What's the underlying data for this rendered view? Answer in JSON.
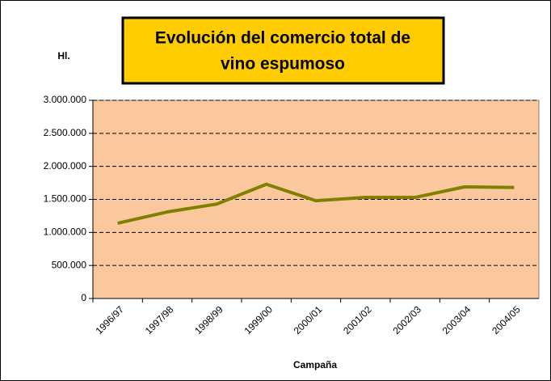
{
  "chart_data": {
    "type": "line",
    "title": [
      "Evolución del comercio total de",
      "vino espumoso"
    ],
    "y_label": "Hl.",
    "x_label": "Campaña",
    "categories": [
      "1996/97",
      "1997/98",
      "1998/99",
      "1999/00",
      "2000/01",
      "2001/02",
      "2002/03",
      "2003/04",
      "2004/05"
    ],
    "series": [
      {
        "color": "#808000",
        "values": [
          1140000,
          1310000,
          1430000,
          1730000,
          1480000,
          1530000,
          1530000,
          1690000,
          1680000
        ]
      }
    ],
    "ylim": [
      0,
      3000000
    ],
    "yticks": [
      0,
      {
        "value": 500000,
        "label": "500.000"
      },
      {
        "value": 1000000,
        "label": "1.000.000"
      },
      {
        "value": 1500000,
        "label": "1.500.000"
      },
      {
        "value": 2000000,
        "label": "2.000.000"
      },
      {
        "value": 2500000,
        "label": "2.500.000"
      },
      {
        "value": 3000000,
        "label": "3.000.000"
      }
    ],
    "grid": true,
    "plot_background": "#FAC89C"
  }
}
